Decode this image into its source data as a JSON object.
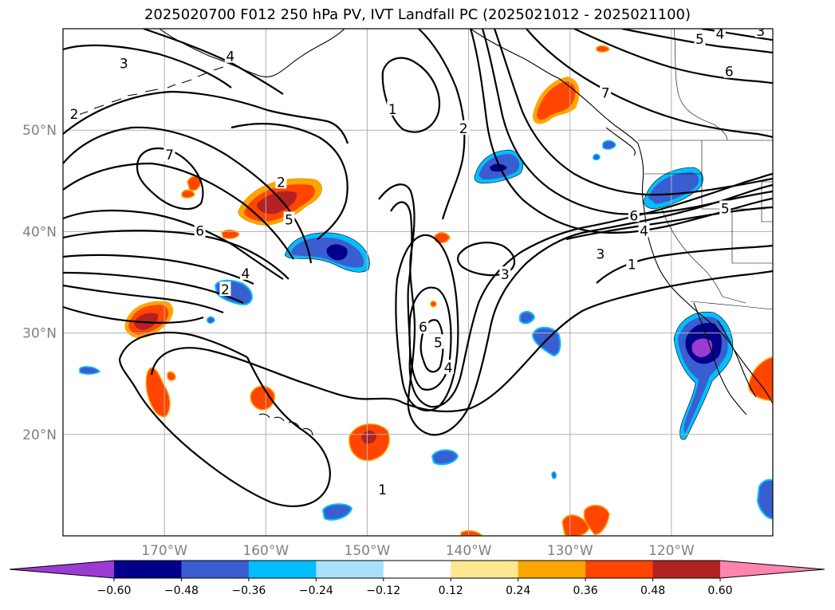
{
  "title": "2025020700 F012 250 hPa PV, IVT Landfall PC (2025021012 - 2025021100)",
  "map": {
    "lon_range": [
      -180,
      -110
    ],
    "lat_range": [
      10,
      60
    ],
    "lat_ticks": [
      {
        "value": 20,
        "label": "20°N"
      },
      {
        "value": 30,
        "label": "30°N"
      },
      {
        "value": 40,
        "label": "40°N"
      },
      {
        "value": 50,
        "label": "50°N"
      }
    ],
    "lon_ticks": [
      {
        "value": -170,
        "label": "170°W"
      },
      {
        "value": -160,
        "label": "160°W"
      },
      {
        "value": -150,
        "label": "150°W"
      },
      {
        "value": -140,
        "label": "140°W"
      },
      {
        "value": -130,
        "label": "130°W"
      },
      {
        "value": -120,
        "label": "120°W"
      }
    ],
    "contour_labels": [
      {
        "text": "3",
        "lon": -174,
        "lat": 56.5
      },
      {
        "text": "4",
        "lon": -163.5,
        "lat": 57.2
      },
      {
        "text": "2",
        "lon": -178.9,
        "lat": 51.5
      },
      {
        "text": "7",
        "lon": -169.5,
        "lat": 47.5
      },
      {
        "text": "6",
        "lon": -166.5,
        "lat": 40.0
      },
      {
        "text": "4",
        "lon": -162,
        "lat": 35.8
      },
      {
        "text": "2",
        "lon": -164,
        "lat": 34.2
      },
      {
        "text": "2",
        "lon": -158.5,
        "lat": 44.8
      },
      {
        "text": "5",
        "lon": -157.7,
        "lat": 41.1
      },
      {
        "text": "1",
        "lon": -147.5,
        "lat": 52.0
      },
      {
        "text": "2",
        "lon": -140.5,
        "lat": 50.1
      },
      {
        "text": "3",
        "lon": -136.4,
        "lat": 35.7
      },
      {
        "text": "6",
        "lon": -144.5,
        "lat": 30.5
      },
      {
        "text": "5",
        "lon": -143,
        "lat": 29.0
      },
      {
        "text": "4",
        "lon": -142,
        "lat": 26.5
      },
      {
        "text": "1",
        "lon": -148.5,
        "lat": 14.5
      },
      {
        "text": "5",
        "lon": -117.2,
        "lat": 58.9
      },
      {
        "text": "4",
        "lon": -115.2,
        "lat": 59.4
      },
      {
        "text": "3",
        "lon": -111.2,
        "lat": 59.7
      },
      {
        "text": "6",
        "lon": -114.3,
        "lat": 55.7
      },
      {
        "text": "7",
        "lon": -126.5,
        "lat": 53.6
      },
      {
        "text": "5",
        "lon": -114.7,
        "lat": 42.2
      },
      {
        "text": "6",
        "lon": -123.7,
        "lat": 41.5
      },
      {
        "text": "4",
        "lon": -122.7,
        "lat": 40.0
      },
      {
        "text": "3",
        "lon": -127,
        "lat": 37.7
      },
      {
        "text": "1",
        "lon": -123.9,
        "lat": 36.7
      }
    ]
  },
  "colorbar": {
    "levels": [
      -0.6,
      -0.48,
      -0.36,
      -0.24,
      -0.12,
      0.12,
      0.24,
      0.36,
      0.48,
      0.6
    ],
    "tick_labels": [
      "−0.60",
      "−0.48",
      "−0.36",
      "−0.24",
      "−0.12",
      "0.12",
      "0.24",
      "0.36",
      "0.48",
      "0.60"
    ],
    "colors": [
      "#9a3bd1",
      "#00008b",
      "#3a5ed0",
      "#00bfff",
      "#a8e0fa",
      "#ffffff",
      "#fde88f",
      "#ffa500",
      "#ff4500",
      "#b22222",
      "#ff85b0"
    ]
  }
}
